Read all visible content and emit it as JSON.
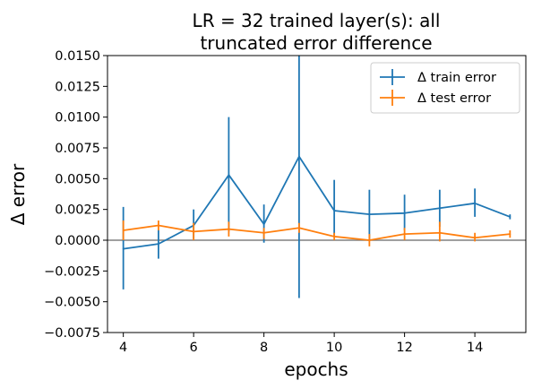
{
  "chart_data": {
    "type": "line",
    "title_lines": [
      "LR = 32 trained layer(s): all",
      "truncated error difference"
    ],
    "xlabel": "epochs",
    "ylabel": "Δ error",
    "xlim": [
      3.55,
      15.45
    ],
    "ylim": [
      -0.0075,
      0.015
    ],
    "xticks": [
      4,
      6,
      8,
      10,
      12,
      14
    ],
    "xtick_labels": [
      "4",
      "6",
      "8",
      "10",
      "12",
      "14"
    ],
    "yticks": [
      -0.0075,
      -0.005,
      -0.0025,
      0.0,
      0.0025,
      0.005,
      0.0075,
      0.01,
      0.0125,
      0.015
    ],
    "ytick_labels": [
      "−0.0075",
      "−0.0050",
      "−0.0025",
      "0.0000",
      "0.0025",
      "0.0050",
      "0.0075",
      "0.0100",
      "0.0125",
      "0.0150"
    ],
    "hline": 0,
    "legend_position": "top-right",
    "grid": false,
    "x": [
      4,
      5,
      6,
      7,
      8,
      9,
      10,
      11,
      12,
      13,
      14,
      15
    ],
    "series": [
      {
        "name": "Δ train error",
        "color": "#1f77b4",
        "values": [
          -0.0007,
          -0.0003,
          0.0012,
          0.0053,
          0.0013,
          0.0068,
          0.0024,
          0.0021,
          0.0022,
          0.0026,
          0.003,
          0.0019
        ],
        "err_low": [
          -0.004,
          -0.0015,
          0.0001,
          0.0007,
          -0.0002,
          -0.0047,
          0.0003,
          0.0,
          0.0008,
          0.0011,
          0.0019,
          0.0017
        ],
        "err_high": [
          0.0027,
          0.0008,
          0.0025,
          0.01,
          0.0029,
          0.015,
          0.0049,
          0.0041,
          0.0037,
          0.0041,
          0.0042,
          0.0021
        ]
      },
      {
        "name": "Δ test error",
        "color": "#ff7f0e",
        "values": [
          0.0008,
          0.0012,
          0.0007,
          0.0009,
          0.0006,
          0.001,
          0.0003,
          0.0,
          0.0005,
          0.0006,
          0.0002,
          0.0005
        ],
        "err_low": [
          0.0,
          0.0008,
          0.0,
          0.0003,
          0.0001,
          0.0006,
          0.0,
          -0.0005,
          0.0,
          -0.0001,
          -0.0001,
          0.0002
        ],
        "err_high": [
          0.0016,
          0.0016,
          0.0014,
          0.0015,
          0.001,
          0.0014,
          0.0006,
          0.0005,
          0.001,
          0.0015,
          0.0006,
          0.0008
        ]
      }
    ]
  }
}
